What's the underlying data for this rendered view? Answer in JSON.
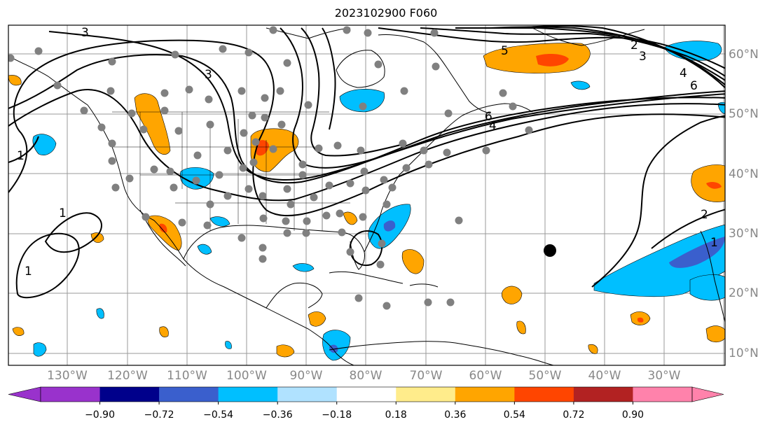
{
  "title": "2023102900 F060",
  "map": {
    "latitude_labels": [
      "60°N",
      "50°N",
      "40°N",
      "30°N",
      "20°N",
      "10°N"
    ],
    "longitude_labels": [
      "130°W",
      "120°W",
      "110°W",
      "100°W",
      "90°W",
      "80°W",
      "70°W",
      "60°W",
      "50°W",
      "40°W",
      "30°W"
    ],
    "contour_labels": [
      "3",
      "3",
      "5",
      "2",
      "3",
      "4",
      "6",
      "6",
      "4",
      "1",
      "1",
      "1",
      "2",
      "1"
    ],
    "colors": {
      "fill_negative_strong": "#3a5fcd",
      "fill_negative": "#00bfff",
      "fill_positive": "#ffa500",
      "fill_positive_strong": "#ff4500",
      "station_marker": "#808080",
      "center_marker": "#000000"
    }
  },
  "colorbar": {
    "tick_labels": [
      "−0.90",
      "−0.72",
      "−0.54",
      "−0.36",
      "−0.18",
      "0.18",
      "0.36",
      "0.54",
      "0.72",
      "0.90"
    ],
    "colors": [
      "#9932cc",
      "#00008b",
      "#3a5fcd",
      "#00bfff",
      "#b0e2ff",
      "#ffffff",
      "#ffec8b",
      "#ffa500",
      "#ff4500",
      "#b22222",
      "#ff82ab",
      "#ff82ab"
    ]
  }
}
